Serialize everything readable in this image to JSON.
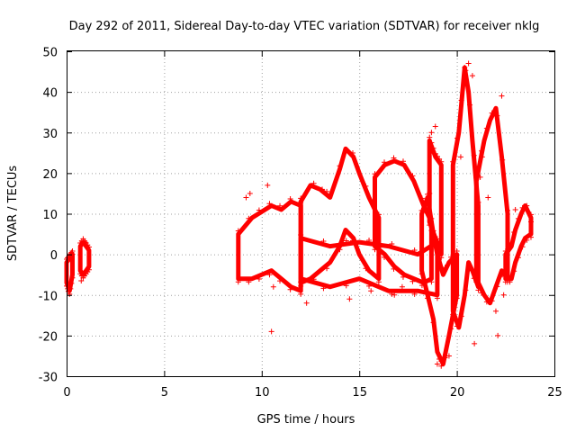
{
  "chart_data": {
    "type": "scatter",
    "title": "Day 292 of 2011, Sidereal Day-to-day VTEC variation (SDTVAR) for receiver nklg",
    "xlabel": "GPS time / hours",
    "ylabel": "SDTVAR / TECUs",
    "xlim": [
      0,
      25
    ],
    "ylim": [
      -30,
      50
    ],
    "grid": true,
    "marker": "+",
    "x_ticks": [
      "0",
      "5",
      "10",
      "15",
      "20",
      "25"
    ],
    "y_ticks": [
      "-30",
      "-20",
      "-10",
      "0",
      "10",
      "20",
      "30",
      "40",
      "50"
    ],
    "series": [
      {
        "name": "SDTVAR",
        "color": "#ff0000",
        "bands": [
          {
            "x": [
              0.0,
              0.15,
              0.3
            ],
            "upper": [
              -2,
              -1,
              0
            ],
            "lower": [
              -7,
              -9,
              -5
            ]
          },
          {
            "x": [
              0.7,
              0.85,
              1.0,
              1.15
            ],
            "upper": [
              2,
              3,
              2,
              1
            ],
            "lower": [
              -4,
              -5,
              -4,
              -3
            ]
          },
          {
            "x": [
              8.8,
              9.5,
              10.5,
              11.0,
              11.5,
              12.0
            ],
            "upper": [
              5,
              9,
              12,
              11,
              13,
              12
            ],
            "lower": [
              -6,
              -6,
              -4,
              -6,
              -8,
              -9
            ]
          },
          {
            "x": [
              12.0,
              12.5,
              13.0,
              13.5,
              14.0,
              14.3,
              14.7,
              15.0,
              15.5,
              16.0
            ],
            "upper": [
              13,
              17,
              16,
              14,
              21,
              26,
              24,
              20,
              14,
              9
            ],
            "lower": [
              -7,
              -6,
              -4,
              -2,
              2,
              6,
              4,
              0,
              -4,
              -6
            ]
          },
          {
            "x": [
              15.8,
              16.3,
              16.8,
              17.3,
              17.8,
              18.3,
              18.7
            ],
            "upper": [
              19,
              22,
              23,
              22,
              18,
              12,
              8
            ],
            "lower": [
              2,
              0,
              -3,
              -5,
              -6,
              -7,
              -6
            ]
          },
          {
            "x": [
              12.0,
              13.5,
              15.0,
              16.5,
              18.0,
              19.0
            ],
            "upper": [
              4,
              2,
              3,
              2,
              0,
              3
            ],
            "lower": [
              -6,
              -8,
              -6,
              -9,
              -9,
              -10
            ]
          },
          {
            "x": [
              18.2,
              18.5,
              18.8,
              19.0,
              19.3,
              19.6,
              20.0
            ],
            "upper": [
              10,
              14,
              5,
              0,
              -5,
              -2,
              0
            ],
            "lower": [
              -4,
              -10,
              -16,
              -24,
              -27,
              -20,
              -10
            ]
          },
          {
            "x": [
              18.6,
              18.9,
              19.2
            ],
            "upper": [
              28,
              24,
              22
            ],
            "lower": [
              8,
              4,
              0
            ]
          },
          {
            "x": [
              19.8,
              20.1,
              20.4,
              20.6,
              20.8,
              21.1
            ],
            "upper": [
              22,
              30,
              46,
              40,
              28,
              12
            ],
            "lower": [
              -14,
              -18,
              -10,
              -2,
              -4,
              -8
            ]
          },
          {
            "x": [
              21.0,
              21.4,
              21.7,
              22.0,
              22.3,
              22.6
            ],
            "upper": [
              18,
              28,
              33,
              36,
              24,
              10
            ],
            "lower": [
              -6,
              -10,
              -12,
              -8,
              -4,
              -6
            ]
          },
          {
            "x": [
              22.5,
              22.8,
              23.0,
              23.3,
              23.5,
              23.8
            ],
            "upper": [
              0,
              2,
              6,
              10,
              12,
              9
            ],
            "lower": [
              -6,
              -6,
              -2,
              2,
              4,
              5
            ]
          }
        ],
        "points": [
          [
            0.1,
            -9
          ],
          [
            0.3,
            0
          ],
          [
            0.75,
            -6.5
          ],
          [
            0.95,
            3
          ],
          [
            9.2,
            14
          ],
          [
            9.4,
            15
          ],
          [
            10.3,
            17
          ],
          [
            10.5,
            -19
          ],
          [
            10.6,
            -8
          ],
          [
            12.3,
            -12
          ],
          [
            13.1,
            16
          ],
          [
            14.5,
            -11
          ],
          [
            15.6,
            -9
          ],
          [
            16.8,
            -10
          ],
          [
            17.2,
            -8
          ],
          [
            18.7,
            30
          ],
          [
            18.9,
            31.5
          ],
          [
            18.6,
            15
          ],
          [
            19.0,
            -27
          ],
          [
            19.2,
            -27.5
          ],
          [
            19.6,
            -25
          ],
          [
            20.2,
            24
          ],
          [
            20.4,
            46
          ],
          [
            20.6,
            47
          ],
          [
            20.8,
            44
          ],
          [
            20.9,
            -22
          ],
          [
            21.3,
            24
          ],
          [
            21.2,
            19
          ],
          [
            21.6,
            14
          ],
          [
            22.3,
            39
          ],
          [
            22.1,
            -20
          ],
          [
            22.4,
            -10
          ],
          [
            22.0,
            -14
          ],
          [
            23.0,
            11
          ],
          [
            23.8,
            8
          ]
        ]
      }
    ]
  }
}
